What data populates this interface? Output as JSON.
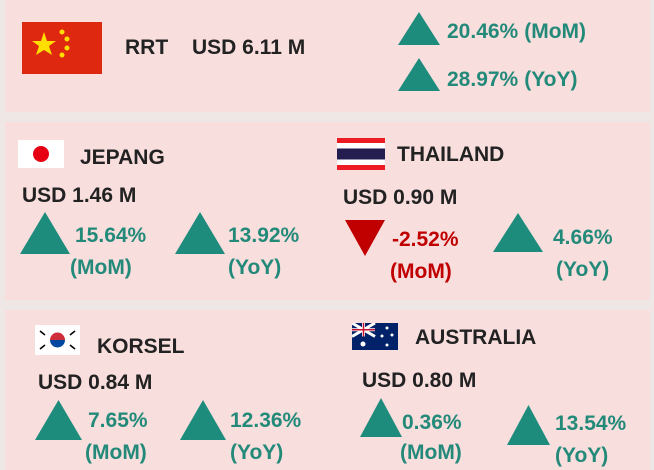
{
  "summary": {
    "name": "RRT",
    "value": "USD 6.11 M",
    "changes": [
      {
        "value": "20.46%",
        "period": "(MoM)"
      },
      {
        "value": "28.97%",
        "period": "(YoY)"
      }
    ]
  },
  "countries": [
    {
      "name": "JEPANG",
      "value": "USD 1.46 M",
      "changes": [
        {
          "value": "15.64%",
          "period": "(MoM)"
        },
        {
          "value": "13.92%",
          "period": "(YoY)"
        }
      ]
    },
    {
      "name": "THAILAND",
      "value": "USD 0.90 M",
      "changes": [
        {
          "value": "-2.52%",
          "period": "(MoM)"
        },
        {
          "value": "4.66%",
          "period": "(YoY)"
        }
      ]
    },
    {
      "name": "KORSEL",
      "value": "USD 0.84 M",
      "changes": [
        {
          "value": "7.65%",
          "period": "(MoM)"
        },
        {
          "value": "12.36%",
          "period": "(YoY)"
        }
      ]
    },
    {
      "name": "AUSTRALIA",
      "value": "USD 0.80 M",
      "changes": [
        {
          "value": "0.36%",
          "period": "(MoM)"
        },
        {
          "value": "13.54%",
          "period": "(YoY)"
        }
      ]
    }
  ]
}
